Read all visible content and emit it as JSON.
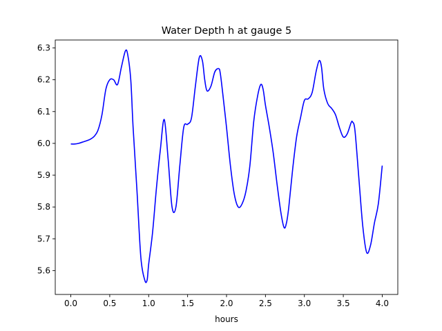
{
  "chart_data": {
    "type": "line",
    "title": "Water Depth h at gauge 5",
    "xlabel": "hours",
    "ylabel": "",
    "xlim": [
      -0.2,
      4.2
    ],
    "ylim": [
      5.525,
      6.325
    ],
    "xticks": [
      0.0,
      0.5,
      1.0,
      1.5,
      2.0,
      2.5,
      3.0,
      3.5,
      4.0
    ],
    "xtick_labels": [
      "0.0",
      "0.5",
      "1.0",
      "1.5",
      "2.0",
      "2.5",
      "3.0",
      "3.5",
      "4.0"
    ],
    "yticks": [
      5.6,
      5.7,
      5.8,
      5.9,
      6.0,
      6.1,
      6.2,
      6.3
    ],
    "ytick_labels": [
      "5.6",
      "5.7",
      "5.8",
      "5.9",
      "6.0",
      "6.1",
      "6.2",
      "6.3"
    ],
    "grid": false,
    "series": [
      {
        "color": "#0000ff",
        "x": [
          0.0,
          0.05,
          0.1,
          0.15,
          0.2,
          0.25,
          0.3,
          0.35,
          0.4,
          0.45,
          0.5,
          0.55,
          0.6,
          0.65,
          0.7,
          0.73,
          0.77,
          0.8,
          0.85,
          0.9,
          0.95,
          0.98,
          1.0,
          1.05,
          1.1,
          1.15,
          1.2,
          1.25,
          1.3,
          1.35,
          1.4,
          1.45,
          1.5,
          1.55,
          1.6,
          1.65,
          1.69,
          1.72,
          1.75,
          1.8,
          1.85,
          1.9,
          1.92,
          1.95,
          2.0,
          2.05,
          2.1,
          2.15,
          2.2,
          2.25,
          2.3,
          2.35,
          2.4,
          2.44,
          2.47,
          2.5,
          2.55,
          2.6,
          2.65,
          2.7,
          2.74,
          2.77,
          2.8,
          2.85,
          2.9,
          2.95,
          3.0,
          3.05,
          3.1,
          3.15,
          3.19,
          3.22,
          3.25,
          3.3,
          3.35,
          3.4,
          3.45,
          3.5,
          3.55,
          3.6,
          3.62,
          3.65,
          3.7,
          3.75,
          3.8,
          3.85,
          3.9,
          3.95,
          4.0
        ],
        "y": [
          5.998,
          5.998,
          6.0,
          6.004,
          6.008,
          6.013,
          6.022,
          6.042,
          6.09,
          6.17,
          6.2,
          6.2,
          6.185,
          6.24,
          6.29,
          6.28,
          6.2,
          6.05,
          5.85,
          5.64,
          5.57,
          5.57,
          5.62,
          5.72,
          5.86,
          5.98,
          6.075,
          5.95,
          5.8,
          5.8,
          5.93,
          6.05,
          6.06,
          6.08,
          6.18,
          6.27,
          6.26,
          6.2,
          6.165,
          6.18,
          6.225,
          6.235,
          6.22,
          6.16,
          6.05,
          5.93,
          5.84,
          5.8,
          5.81,
          5.85,
          5.93,
          6.07,
          6.15,
          6.185,
          6.17,
          6.12,
          6.05,
          5.97,
          5.87,
          5.78,
          5.735,
          5.75,
          5.8,
          5.92,
          6.02,
          6.08,
          6.135,
          6.14,
          6.16,
          6.225,
          6.26,
          6.24,
          6.17,
          6.125,
          6.11,
          6.09,
          6.05,
          6.02,
          6.03,
          6.065,
          6.067,
          6.04,
          5.89,
          5.74,
          5.657,
          5.68,
          5.75,
          5.81,
          5.93
        ]
      }
    ]
  }
}
